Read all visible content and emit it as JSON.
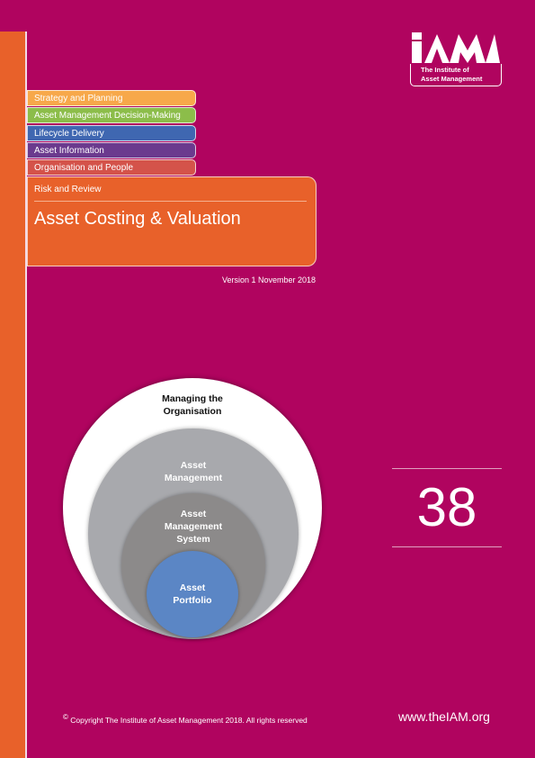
{
  "categories": [
    {
      "label": "Strategy and Planning",
      "color": "#f7a84a"
    },
    {
      "label": "Asset Management Decision-Making",
      "color": "#8cbd4a"
    },
    {
      "label": "Lifecycle Delivery",
      "color": "#3f67b1"
    },
    {
      "label": "Asset Information",
      "color": "#6b3a8e"
    },
    {
      "label": "Organisation and People",
      "color": "#d4534a"
    }
  ],
  "panel": {
    "category": "Risk and Review",
    "title": "Asset Costing & Valuation"
  },
  "version": "Version 1 November 2018",
  "logo": {
    "line1": "The Institute of",
    "line2": "Asset Management"
  },
  "diagram": {
    "outer": "Managing the\nOrganisation",
    "second": "Asset\nManagement",
    "third": "Asset\nManagement\nSystem",
    "inner": "Asset\nPortfolio"
  },
  "number": "38",
  "footer": {
    "copyright": "Copyright The Institute of Asset Management 2018.  All rights reserved",
    "copyright_symbol": "©",
    "website": "www.theIAM.org"
  }
}
